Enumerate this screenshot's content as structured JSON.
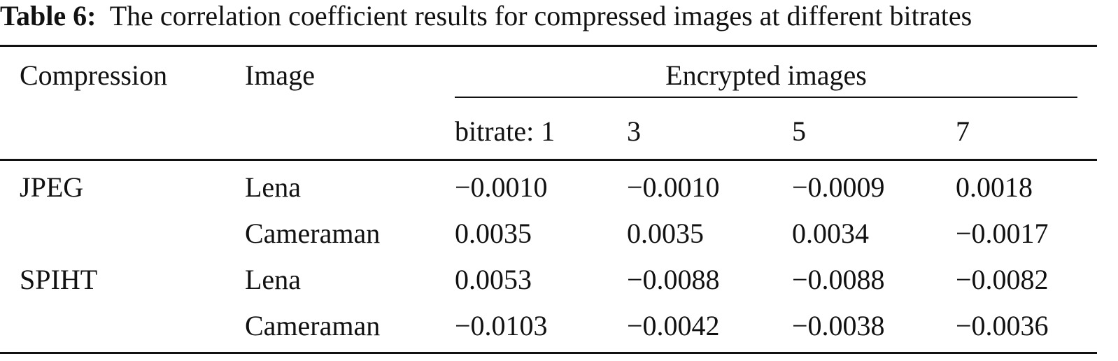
{
  "caption": {
    "label": "Table 6:",
    "text": "The correlation coefficient results for compressed images at different bitrates"
  },
  "table": {
    "headers": {
      "compression": "Compression",
      "image": "Image",
      "group": "Encrypted images",
      "bitrates": [
        "bitrate: 1",
        "3",
        "5",
        "7"
      ]
    },
    "rows": [
      {
        "compression": "JPEG",
        "image": "Lena",
        "values": [
          "−0.0010",
          "−0.0010",
          "−0.0009",
          "0.0018"
        ]
      },
      {
        "compression": "",
        "image": "Cameraman",
        "values": [
          "0.0035",
          "0.0035",
          "0.0034",
          "−0.0017"
        ]
      },
      {
        "compression": "SPIHT",
        "image": "Lena",
        "values": [
          "0.0053",
          "−0.0088",
          "−0.0088",
          "−0.0082"
        ]
      },
      {
        "compression": "",
        "image": "Cameraman",
        "values": [
          "−0.0103",
          "−0.0042",
          "−0.0038",
          "−0.0036"
        ]
      }
    ]
  }
}
